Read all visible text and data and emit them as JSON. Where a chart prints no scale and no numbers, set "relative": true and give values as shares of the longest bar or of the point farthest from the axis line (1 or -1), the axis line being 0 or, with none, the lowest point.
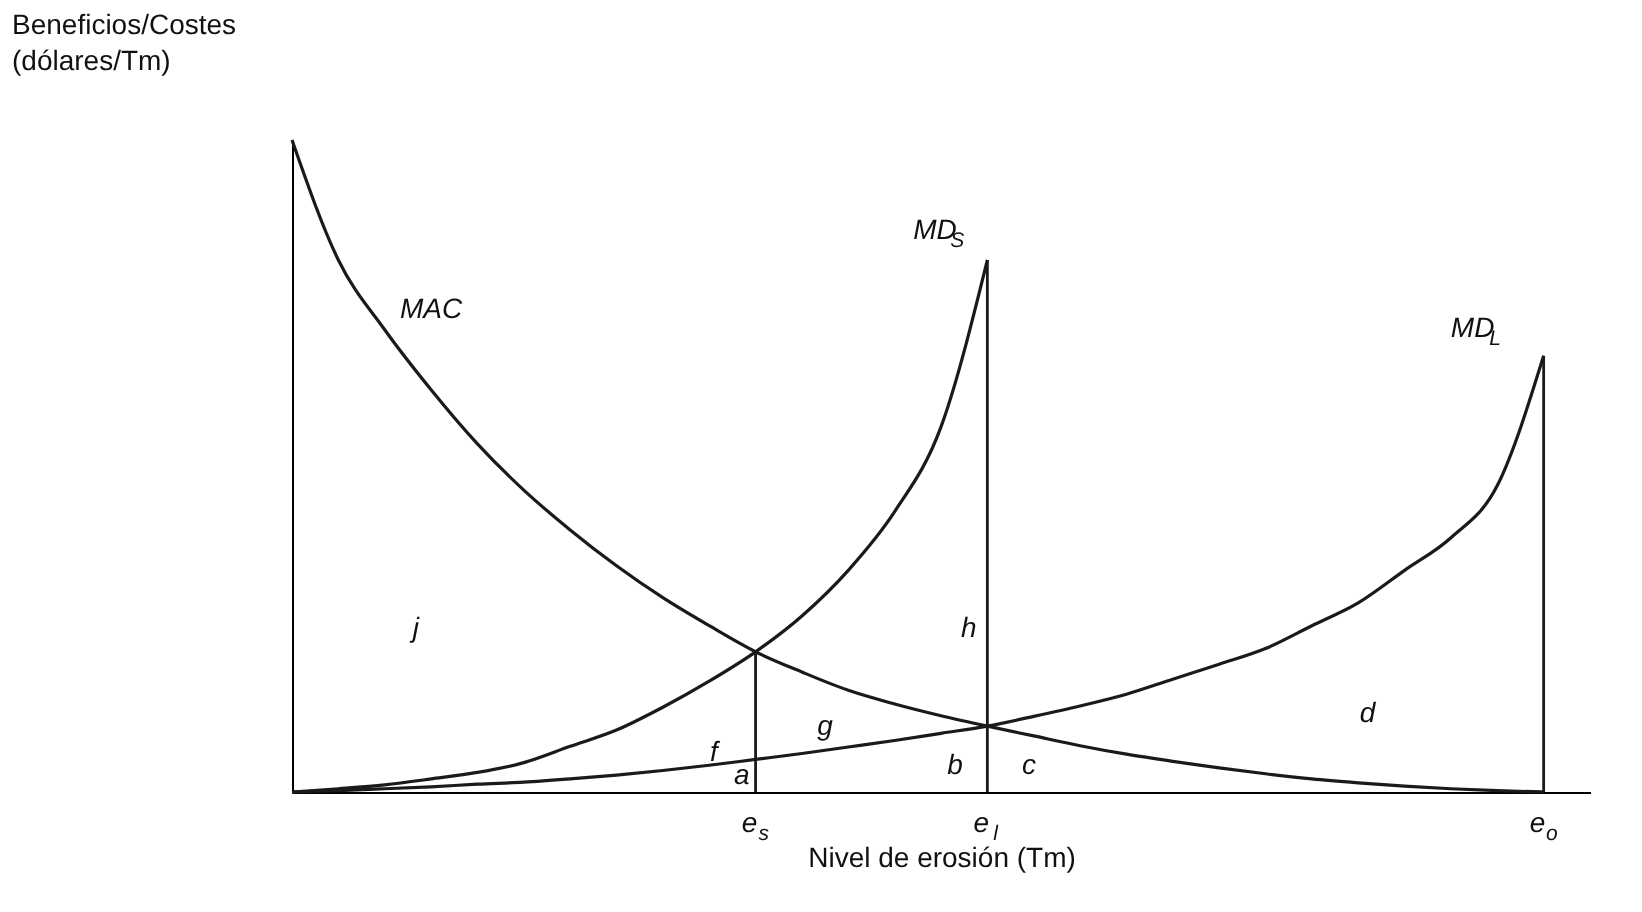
{
  "chart_data": {
    "type": "line",
    "relative": true,
    "xlabel": "Nivel de erosión (Tm)",
    "ylabel": "Beneficios/Costes (dólares/Tm)",
    "categories": [
      null,
      null,
      null,
      null,
      null,
      null,
      null,
      null,
      null,
      null,
      "e$_{s}$",
      null,
      null,
      null,
      null,
      "e$_{l}$",
      null,
      null,
      null,
      null,
      null,
      null,
      null,
      null,
      null,
      null,
      null,
      "e$_{o}$"
    ],
    "series": [
      {
        "name": "MAC",
        "color": "#1a1a1a",
        "values": [
          1,
          0.816,
          0.709,
          0.617,
          0.534,
          0.463,
          0.402,
          0.347,
          0.298,
          0.255,
          0.215,
          0.184,
          0.156,
          0.135,
          0.117,
          0.101,
          0.086,
          0.071,
          0.058,
          0.047,
          0.037,
          0.028,
          0.02,
          0.014,
          0.009,
          0.005,
          0.002,
          0
        ]
      },
      {
        "name": "MD$_{S}$",
        "color": "#1a1a1a",
        "values": [
          0,
          0.005,
          0.011,
          0.02,
          0.03,
          0.045,
          0.07,
          0.095,
          0.13,
          0.17,
          0.215,
          0.27,
          0.34,
          0.43,
          0.56,
          0.816,
          null,
          null,
          null,
          null,
          null,
          null,
          null,
          null,
          null,
          null,
          null,
          null
        ]
      },
      {
        "name": "MD$_{L}$",
        "color": "#1a1a1a",
        "values": [
          0,
          0.002,
          0.005,
          0.008,
          0.012,
          0.015,
          0.02,
          0.026,
          0.033,
          0.041,
          0.05,
          0.059,
          0.069,
          0.079,
          0.09,
          0.101,
          0.116,
          0.132,
          0.15,
          0.173,
          0.196,
          0.22,
          0.255,
          0.29,
          0.34,
          0.39,
          0.47,
          0.669
        ]
      }
    ],
    "ref_lines": [
      {
        "axis": "x",
        "value": "e$_{s}$"
      },
      {
        "axis": "x",
        "value": "e$_{l}$"
      },
      {
        "axis": "x",
        "value": "e$_{o}$"
      }
    ],
    "annotations": [
      "j",
      "h",
      "f",
      "g",
      "a",
      "b",
      "c",
      "d"
    ]
  }
}
